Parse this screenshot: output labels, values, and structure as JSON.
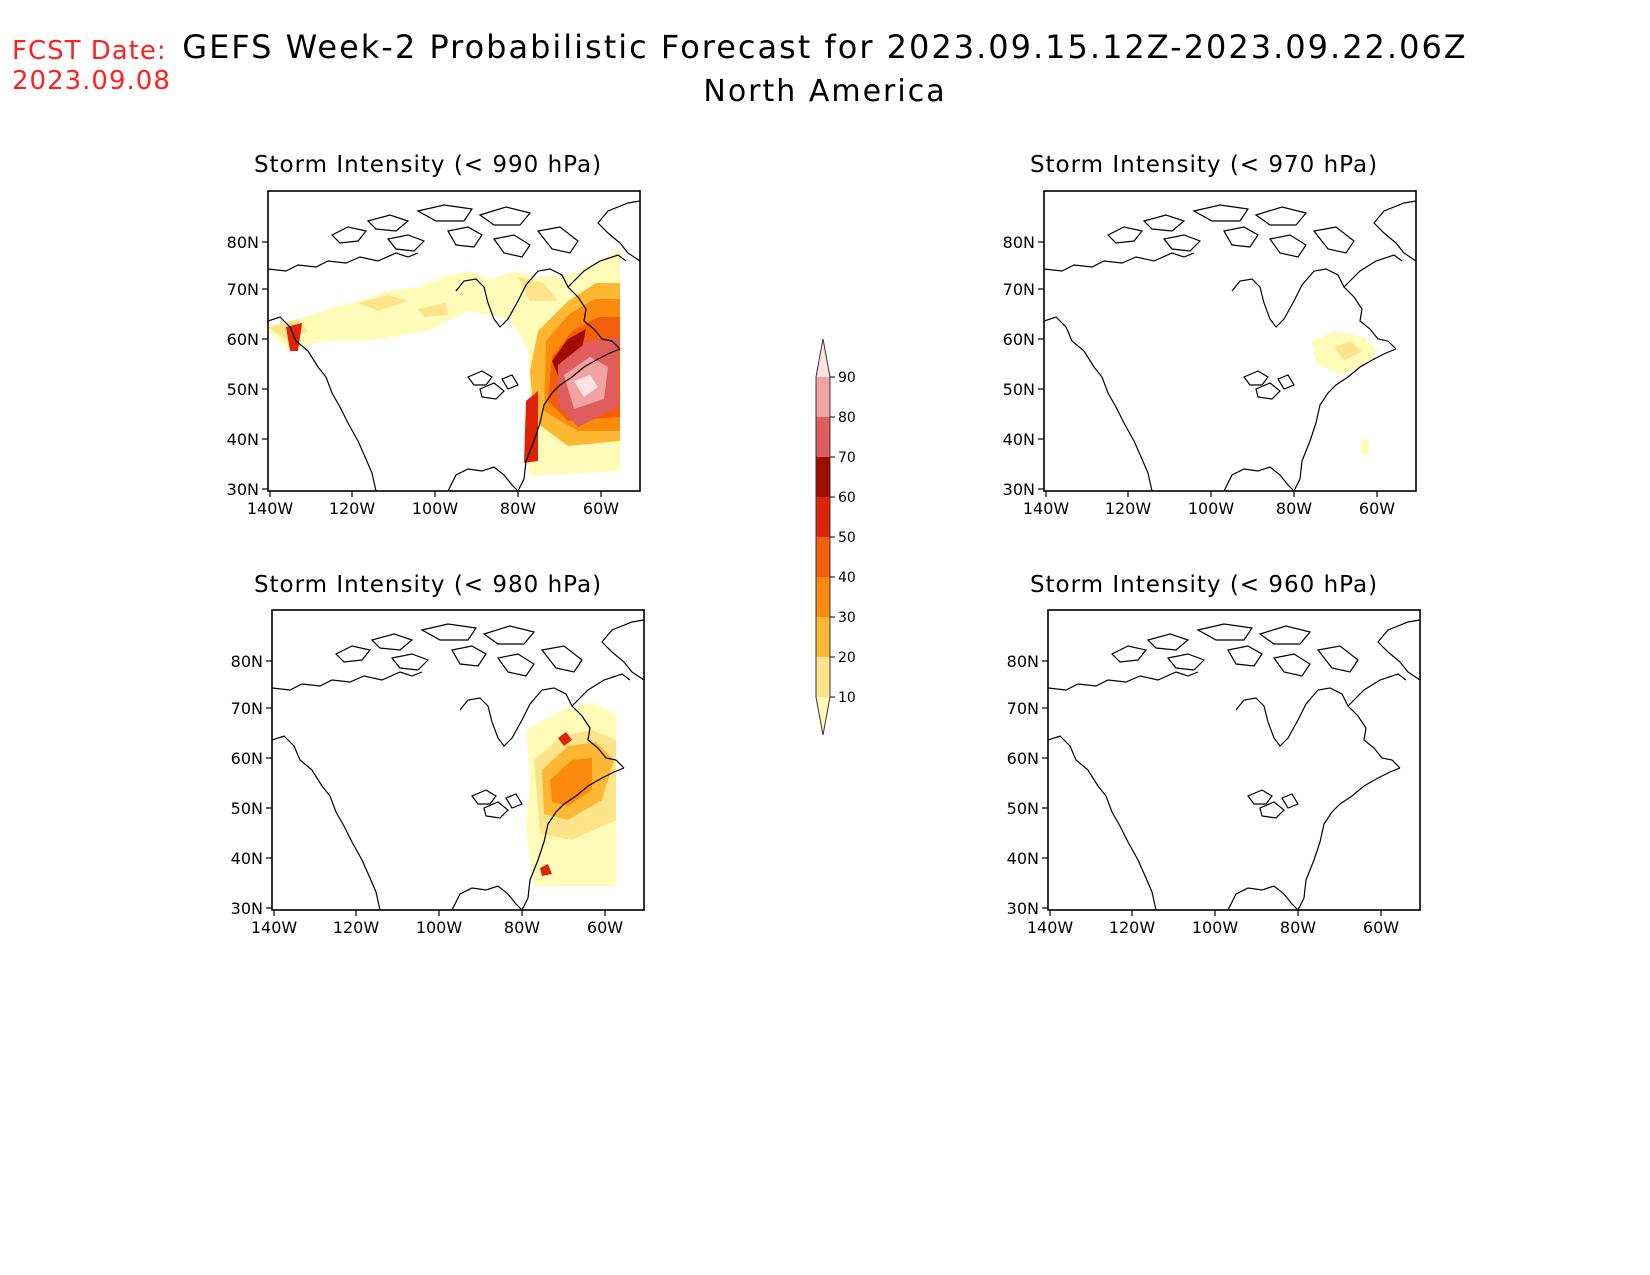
{
  "header": {
    "fcst_label": "FCST Date:",
    "fcst_date": "2023.09.08",
    "title": "GEFS Week-2 Probabilistic Forecast for 2023.09.15.12Z-2023.09.22.06Z",
    "subtitle": "North America"
  },
  "panels": [
    {
      "title": "Storm Intensity (< 990 hPa)"
    },
    {
      "title": "Storm Intensity (< 970 hPa)"
    },
    {
      "title": "Storm Intensity (< 980 hPa)"
    },
    {
      "title": "Storm Intensity (< 960 hPa)"
    }
  ],
  "axes": {
    "lat_labels": [
      "80N",
      "70N",
      "60N",
      "50N",
      "40N",
      "30N"
    ],
    "lon_labels": [
      "140W",
      "120W",
      "100W",
      "80W",
      "60W"
    ]
  },
  "colorbar": {
    "levels": [
      "10",
      "20",
      "30",
      "40",
      "50",
      "60",
      "70",
      "80",
      "90"
    ],
    "colors": [
      "#fffbb8",
      "#fde38a",
      "#fdb733",
      "#fb8a0d",
      "#f45e08",
      "#dd2408",
      "#a10c00",
      "#df5d5d",
      "#f3a2a2",
      "#fde3e3"
    ]
  }
}
